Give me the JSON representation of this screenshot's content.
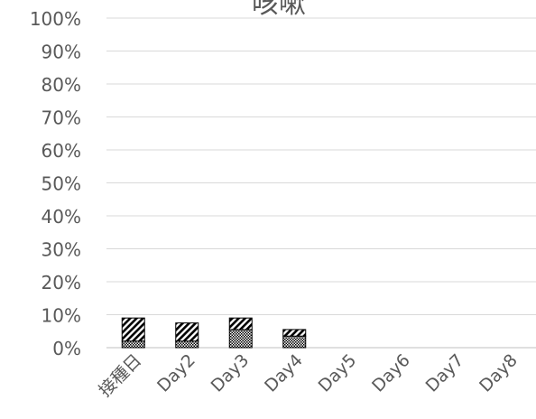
{
  "chart_data": {
    "type": "bar",
    "stacked": true,
    "title": "咳嗽",
    "xlabel": "",
    "ylabel": "",
    "ylim": [
      0,
      1
    ],
    "y_tick_labels": [
      "0%",
      "10%",
      "20%",
      "30%",
      "40%",
      "50%",
      "60%",
      "70%",
      "80%",
      "90%",
      "100%"
    ],
    "categories": [
      "接種日",
      "Day2",
      "Day3",
      "Day4",
      "Day5",
      "Day6",
      "Day7",
      "Day8"
    ],
    "grid": true,
    "legend": "none",
    "series": [
      {
        "pattern": "crosshatch",
        "values": [
          0.02,
          0.02,
          0.055,
          0.035,
          0,
          0,
          0,
          0
        ]
      },
      {
        "pattern": "diagonal",
        "values": [
          0.07,
          0.055,
          0.035,
          0.02,
          0,
          0,
          0,
          0
        ]
      }
    ]
  }
}
